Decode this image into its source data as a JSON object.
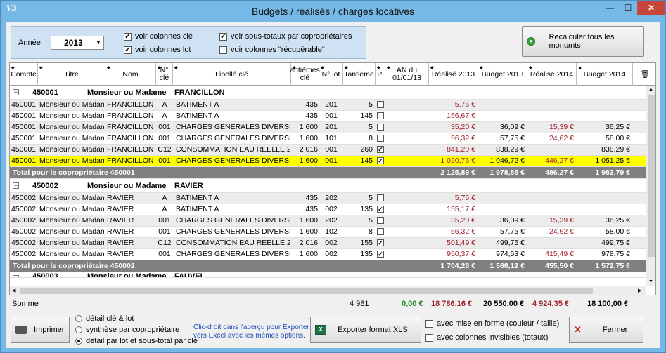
{
  "window": {
    "icon": "V3",
    "title": "Budgets / réalisés / charges locatives",
    "min": "—",
    "max": "☐",
    "close": "✕"
  },
  "filters": {
    "annee_label": "Année",
    "annee_value": "2013",
    "cb_cles": {
      "label": "voir colonnes clé",
      "checked": true
    },
    "cb_lot": {
      "label": "voir colonnes lot",
      "checked": true
    },
    "cb_sous_totaux": {
      "label": "voir sous-totaux par copropriétaires",
      "checked": true
    },
    "cb_recuperable": {
      "label": "voir colonnes \"récupérable\"",
      "checked": false
    }
  },
  "recalc_label": "Recalculer tous les montants",
  "columns": [
    "Compte",
    "Titre",
    "Nom",
    "N° clé",
    "Libellé clé",
    "antièmes clé",
    "N° lot",
    "Tantième",
    "P.",
    "AN du 01/01/13",
    "Réalisé 2013",
    "Budget 2013",
    "Réalisé 2014",
    "Budget 2014"
  ],
  "groups": [
    {
      "header": {
        "compte": "450001",
        "titre": "Monsieur ou Madame",
        "nom": "FRANCILLON"
      },
      "rows": [
        {
          "compte": "450001",
          "titre": "Monsieur ou Madame",
          "nom": "FRANCILLON",
          "cle": "A",
          "libelle": "BATIMENT A",
          "antiemes": "435",
          "lot": "201",
          "tantieme": "5",
          "p": "",
          "an": "",
          "real2013": "5,75 €",
          "bud2013": "",
          "real2014": "",
          "bud2014": ""
        },
        {
          "compte": "450001",
          "titre": "Monsieur ou Madame",
          "nom": "FRANCILLON",
          "cle": "A",
          "libelle": "BATIMENT A",
          "antiemes": "435",
          "lot": "001",
          "tantieme": "145",
          "p": "",
          "an": "",
          "real2013": "166,67 €",
          "bud2013": "",
          "real2014": "",
          "bud2014": ""
        },
        {
          "compte": "450001",
          "titre": "Monsieur ou Madame",
          "nom": "FRANCILLON",
          "cle": "001",
          "libelle": "CHARGES GENERALES DIVERSES",
          "antiemes": "1 600",
          "lot": "201",
          "tantieme": "5",
          "p": "",
          "an": "",
          "real2013": "35,20 €",
          "bud2013": "36,09 €",
          "real2014": "15,39 €",
          "bud2014": "36,25 €"
        },
        {
          "compte": "450001",
          "titre": "Monsieur ou Madame",
          "nom": "FRANCILLON",
          "cle": "001",
          "libelle": "CHARGES GENERALES DIVERSES",
          "antiemes": "1 600",
          "lot": "101",
          "tantieme": "8",
          "p": "",
          "an": "",
          "real2013": "56,32 €",
          "bud2013": "57,75 €",
          "real2014": "24,62 €",
          "bud2014": "58,00 €"
        },
        {
          "compte": "450001",
          "titre": "Monsieur ou Madame",
          "nom": "FRANCILLON",
          "cle": "C12",
          "libelle": "CONSOMMATION EAU REELLE 2012",
          "antiemes": "2 016",
          "lot": "001",
          "tantieme": "260",
          "p": "✓",
          "an": "",
          "real2013": "841,20 €",
          "bud2013": "838,29 €",
          "real2014": "",
          "bud2014": "838,29 €"
        },
        {
          "compte": "450001",
          "titre": "Monsieur ou Madame",
          "nom": "FRANCILLON",
          "cle": "001",
          "libelle": "CHARGES GENERALES DIVERSES",
          "antiemes": "1 600",
          "lot": "001",
          "tantieme": "145",
          "p": "✓",
          "an": "",
          "real2013": "1 020,76 €",
          "bud2013": "1 046,72 €",
          "real2014": "446,27 €",
          "bud2014": "1 051,25 €"
        }
      ],
      "total": {
        "label": "Total pour le copropriétaire 450001",
        "real2013": "2 125,89 €",
        "bud2013": "1 978,85 €",
        "real2014": "486,27 €",
        "bud2014": "1 983,79 €"
      }
    },
    {
      "header": {
        "compte": "450002",
        "titre": "Monsieur ou Madame",
        "nom": "RAVIER"
      },
      "rows": [
        {
          "compte": "450002",
          "titre": "Monsieur ou Madame",
          "nom": "RAVIER",
          "cle": "A",
          "libelle": "BATIMENT A",
          "antiemes": "435",
          "lot": "202",
          "tantieme": "5",
          "p": "",
          "an": "",
          "real2013": "5,75 €",
          "bud2013": "",
          "real2014": "",
          "bud2014": ""
        },
        {
          "compte": "450002",
          "titre": "Monsieur ou Madame",
          "nom": "RAVIER",
          "cle": "A",
          "libelle": "BATIMENT A",
          "antiemes": "435",
          "lot": "002",
          "tantieme": "135",
          "p": "✓",
          "an": "",
          "real2013": "155,17 €",
          "bud2013": "",
          "real2014": "",
          "bud2014": ""
        },
        {
          "compte": "450002",
          "titre": "Monsieur ou Madame",
          "nom": "RAVIER",
          "cle": "001",
          "libelle": "CHARGES GENERALES DIVERSES",
          "antiemes": "1 600",
          "lot": "202",
          "tantieme": "5",
          "p": "",
          "an": "",
          "real2013": "35,20 €",
          "bud2013": "36,09 €",
          "real2014": "15,39 €",
          "bud2014": "36,25 €"
        },
        {
          "compte": "450002",
          "titre": "Monsieur ou Madame",
          "nom": "RAVIER",
          "cle": "001",
          "libelle": "CHARGES GENERALES DIVERSES",
          "antiemes": "1 600",
          "lot": "102",
          "tantieme": "8",
          "p": "",
          "an": "",
          "real2013": "56,32 €",
          "bud2013": "57,75 €",
          "real2014": "24,62 €",
          "bud2014": "58,00 €"
        },
        {
          "compte": "450002",
          "titre": "Monsieur ou Madame",
          "nom": "RAVIER",
          "cle": "C12",
          "libelle": "CONSOMMATION EAU REELLE 2012",
          "antiemes": "2 016",
          "lot": "002",
          "tantieme": "155",
          "p": "✓",
          "an": "",
          "real2013": "501,49 €",
          "bud2013": "499,75 €",
          "real2014": "",
          "bud2014": "499,75 €"
        },
        {
          "compte": "450002",
          "titre": "Monsieur ou Madame",
          "nom": "RAVIER",
          "cle": "001",
          "libelle": "CHARGES GENERALES DIVERSES",
          "antiemes": "1 600",
          "lot": "002",
          "tantieme": "135",
          "p": "✓",
          "an": "",
          "real2013": "950,37 €",
          "bud2013": "974,53 €",
          "real2014": "415,49 €",
          "bud2014": "978,75 €"
        }
      ],
      "total": {
        "label": "Total pour le copropriétaire 450002",
        "real2013": "1 704,28 €",
        "bud2013": "1 568,12 €",
        "real2014": "455,50 €",
        "bud2014": "1 572,75 €"
      }
    }
  ],
  "partial_group": {
    "compte": "450003",
    "titre": "Monsieur ou Madame",
    "nom": "FAUVEL"
  },
  "somme": {
    "label": "Somme",
    "tantieme": "4 981",
    "an": "0,00 €",
    "real2013": "18 786,16 €",
    "bud2013": "20 550,00 €",
    "real2014": "4 924,35 €",
    "bud2014": "18 100,00 €"
  },
  "bottom": {
    "print_label": "Imprimer",
    "radios": [
      {
        "label": "détail clé & lot",
        "on": false
      },
      {
        "label": "synthèse par copropriétaire",
        "on": false
      },
      {
        "label": "détail par lot et sous-total par clé",
        "on": true
      }
    ],
    "hint_line1": "Clic-droit dans l'aperçu pour Exporter",
    "hint_line2": "vers Excel avec les mêmes options.",
    "xls_label": "Exporter format XLS",
    "cb_mise_en_forme": {
      "label": "avec mise en forme (couleur / taille)",
      "checked": false
    },
    "cb_invisibles": {
      "label": "avec colonnes invisibles (totaux)",
      "checked": false
    },
    "close_label": "Fermer"
  },
  "colors": {
    "title_bg": "#77b9e6",
    "total_bg": "#808080",
    "highlight": "#ffff00",
    "negative_red": "#a0212c",
    "green_value": "#1f8a1f"
  }
}
